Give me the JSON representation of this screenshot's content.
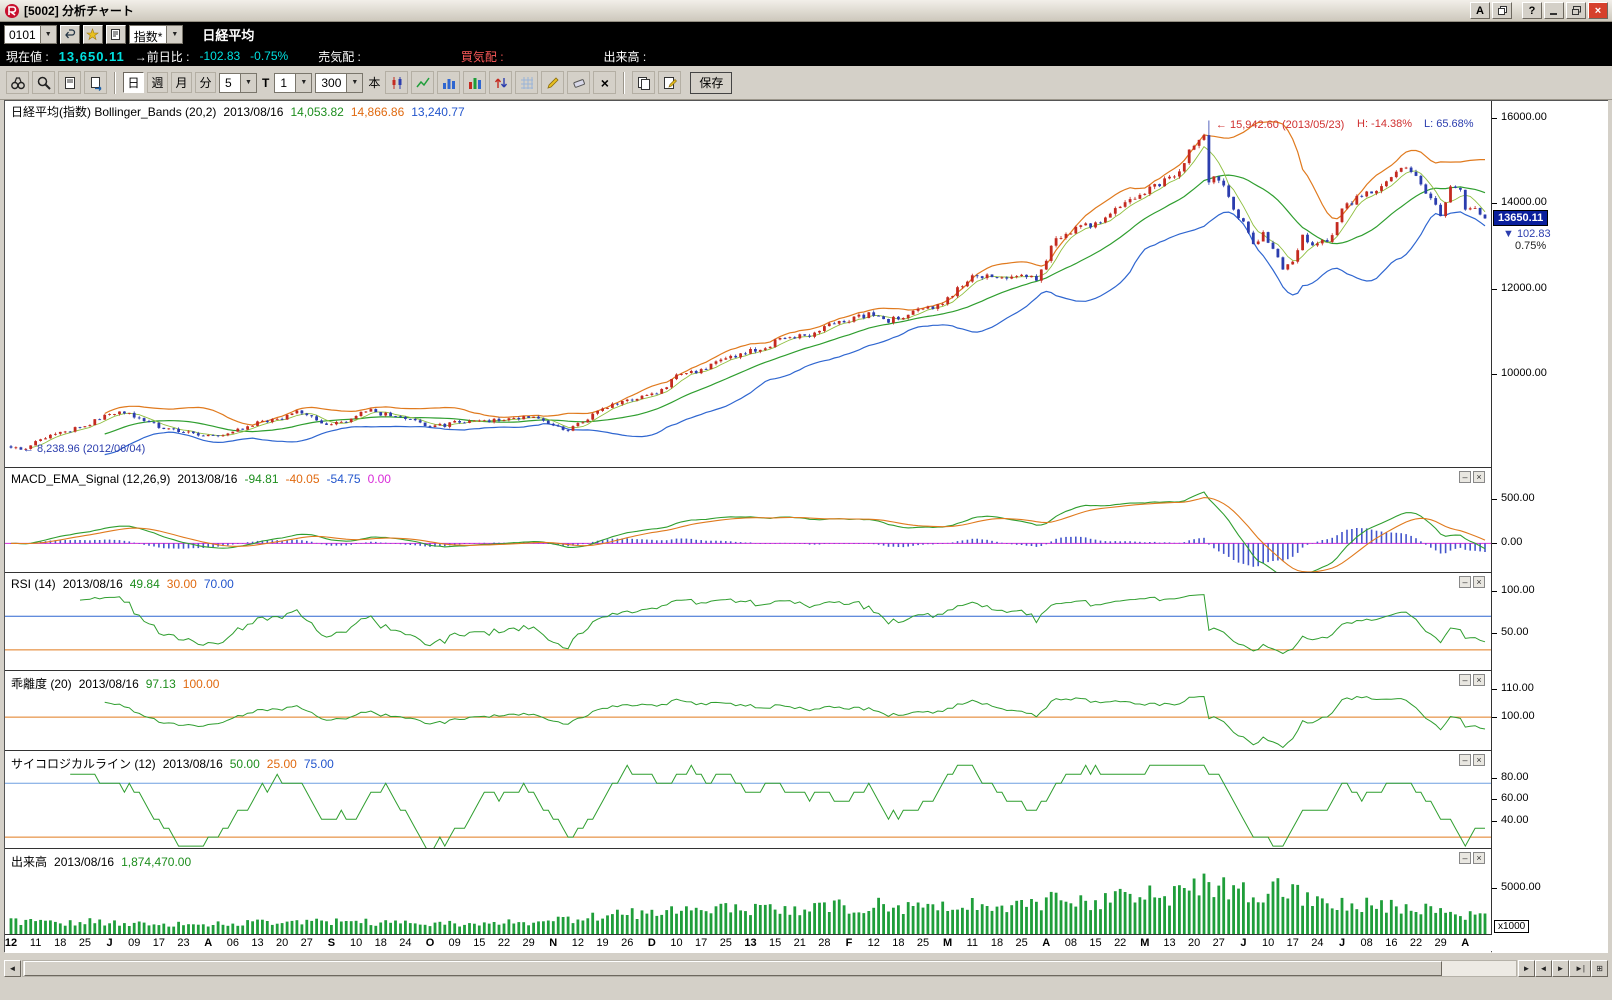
{
  "window": {
    "title": "[5002] 分析チャート",
    "buttons": {
      "annotate": "A",
      "help": "?"
    }
  },
  "icons": {
    "dropdown": "▼",
    "close": "×",
    "scroll_left": "◄",
    "scroll_right": "►",
    "nav_prev": "◄",
    "nav_next": "►",
    "nav_last": "►|",
    "layout": "⊞",
    "panel_minimize": "–",
    "panel_close": "×",
    "delete_drawing": "×"
  },
  "symbol_bar": {
    "code": "0101",
    "category": "指数*",
    "symbol_name": "日経平均"
  },
  "quote_bar": {
    "current_label": "現在値 :",
    "current_value": "13,650.11",
    "prev_diff_label": "→前日比 :",
    "prev_diff_value": "-102.83",
    "prev_diff_pct": "-0.75%",
    "ask_label": "売気配 :",
    "bid_label": "買気配 :",
    "volume_label": "出来高 :"
  },
  "toolbar": {
    "period_day": "日",
    "period_week": "週",
    "period_month": "月",
    "period_minute": "分",
    "interval_value": "5",
    "tick_label": "T",
    "tick_value": "1",
    "bars_value": "300",
    "bars_unit": "本",
    "save_label": "保存"
  },
  "panels": {
    "main": {
      "title": "日経平均(指数) Bollinger_Bands (20,2)",
      "date": "2013/08/16",
      "mid": "14,053.82",
      "upper": "14,866.86",
      "lower": "13,240.77"
    },
    "macd": {
      "title": "MACD_EMA_Signal (12,26,9)",
      "date": "2013/08/16",
      "macd": "-94.81",
      "signal": "-40.05",
      "hist": "-54.75",
      "zero": "0.00"
    },
    "rsi": {
      "title": "RSI (14)",
      "date": "2013/08/16",
      "value": "49.84",
      "low_ref": "30.00",
      "high_ref": "70.00"
    },
    "kairi": {
      "title": "乖離度 (20)",
      "date": "2013/08/16",
      "value": "97.13",
      "ref": "100.00"
    },
    "psych": {
      "title": "サイコロジカルライン (12)",
      "date": "2013/08/16",
      "value": "50.00",
      "low_ref": "25.00",
      "high_ref": "75.00"
    },
    "volume": {
      "title": "出来高",
      "date": "2013/08/16",
      "value": "1,874,470.00"
    }
  },
  "annotations": {
    "high": "← 15,942.60 (2013/05/23)",
    "low": "← 8,238.96 (2012/06/04)"
  },
  "stats": {
    "high_pct": "H: -14.38%",
    "low_pct": "L: 65.68%"
  },
  "price_tag": {
    "value": "13650.11",
    "change": "▼ 102.83",
    "pct": "0.75%"
  },
  "axis": {
    "volume_multiplier": "x1000"
  },
  "x_axis_labels": [
    "12",
    "11",
    "18",
    "25",
    "J",
    "09",
    "17",
    "23",
    "A",
    "06",
    "13",
    "20",
    "27",
    "S",
    "10",
    "18",
    "24",
    "O",
    "09",
    "15",
    "22",
    "29",
    "N",
    "12",
    "19",
    "26",
    "D",
    "10",
    "17",
    "25",
    "13",
    "15",
    "21",
    "28",
    "F",
    "12",
    "18",
    "25",
    "M",
    "11",
    "18",
    "25",
    "A",
    "08",
    "15",
    "22",
    "M",
    "13",
    "20",
    "27",
    "J",
    "10",
    "17",
    "24",
    "J",
    "08",
    "16",
    "22",
    "29",
    "A"
  ],
  "chart_data": {
    "bars": 300,
    "main": {
      "type": "candlestick",
      "title": "日経平均(指数) Bollinger_Bands (20,2)",
      "ylim": [
        7800,
        16400
      ],
      "y_ticks": [
        16000,
        14000,
        12000,
        10000
      ],
      "high_anchor": {
        "index": 243,
        "value": 15942.6,
        "date": "2013/05/23"
      },
      "low_anchor": {
        "index": 1,
        "value": 8238.96,
        "date": "2012/06/04"
      },
      "last_close": 13650.11,
      "bollinger": {
        "period": 20,
        "stddev": 2,
        "middle": 14053.82,
        "upper": 14866.86,
        "lower": 13240.77
      },
      "close_control_points": [
        [
          0,
          8295
        ],
        [
          2,
          8239
        ],
        [
          6,
          8450
        ],
        [
          10,
          8640
        ],
        [
          14,
          8730
        ],
        [
          19,
          9007
        ],
        [
          23,
          9104
        ],
        [
          27,
          8950
        ],
        [
          31,
          8730
        ],
        [
          35,
          8650
        ],
        [
          41,
          8555
        ],
        [
          46,
          8700
        ],
        [
          50,
          8880
        ],
        [
          55,
          8980
        ],
        [
          58,
          9150
        ],
        [
          63,
          8840
        ],
        [
          67,
          8870
        ],
        [
          70,
          9000
        ],
        [
          72,
          9160
        ],
        [
          76,
          9060
        ],
        [
          82,
          8870
        ],
        [
          86,
          8770
        ],
        [
          90,
          8850
        ],
        [
          95,
          8930
        ],
        [
          100,
          8900
        ],
        [
          104,
          8970
        ],
        [
          106,
          9050
        ],
        [
          109,
          8850
        ],
        [
          112,
          8665
        ],
        [
          116,
          8900
        ],
        [
          120,
          9150
        ],
        [
          125,
          9420
        ],
        [
          128,
          9460
        ],
        [
          132,
          9640
        ],
        [
          135,
          9940
        ],
        [
          140,
          10100
        ],
        [
          145,
          10395
        ],
        [
          148,
          10480
        ],
        [
          152,
          10600
        ],
        [
          156,
          10800
        ],
        [
          160,
          10900
        ],
        [
          163,
          10920
        ],
        [
          166,
          11140
        ],
        [
          170,
          11260
        ],
        [
          174,
          11400
        ],
        [
          178,
          11250
        ],
        [
          182,
          11400
        ],
        [
          185,
          11560
        ],
        [
          188,
          11600
        ],
        [
          192,
          11980
        ],
        [
          195,
          12280
        ],
        [
          199,
          12340
        ],
        [
          202,
          12250
        ],
        [
          205,
          12400
        ],
        [
          208,
          12200
        ],
        [
          212,
          13200
        ],
        [
          216,
          13400
        ],
        [
          220,
          13550
        ],
        [
          224,
          13880
        ],
        [
          228,
          14180
        ],
        [
          232,
          14400
        ],
        [
          236,
          14600
        ],
        [
          240,
          15360
        ],
        [
          242,
          15627
        ],
        [
          243,
          14483
        ],
        [
          245,
          14612
        ],
        [
          247,
          14142
        ],
        [
          248,
          13775
        ],
        [
          250,
          13515
        ],
        [
          252,
          13014
        ],
        [
          254,
          13290
        ],
        [
          256,
          12904
        ],
        [
          258,
          12445
        ],
        [
          260,
          12686
        ],
        [
          262,
          13230
        ],
        [
          264,
          13014
        ],
        [
          266,
          13106
        ],
        [
          268,
          13240
        ],
        [
          270,
          13852
        ],
        [
          273,
          14110
        ],
        [
          276,
          14310
        ],
        [
          279,
          14506
        ],
        [
          282,
          14808
        ],
        [
          285,
          14655
        ],
        [
          288,
          14130
        ],
        [
          290,
          13668
        ],
        [
          291,
          14060
        ],
        [
          292,
          14466
        ],
        [
          294,
          14258
        ],
        [
          295,
          13825
        ],
        [
          297,
          13867
        ],
        [
          298,
          13752
        ],
        [
          299,
          13650.11
        ]
      ],
      "colors": {
        "up": "#c42a20",
        "down": "#2b3dae",
        "middle": "#2f9e2f",
        "short_ma": "#8fbf3f",
        "upper": "#e07a1e",
        "lower": "#2f66d0"
      }
    },
    "macd": {
      "type": "line",
      "params": [
        12,
        26,
        9
      ],
      "last": {
        "macd": -94.81,
        "signal": -40.05,
        "hist": -54.75
      },
      "ylim": [
        -330,
        830
      ],
      "y_ticks": [
        500,
        0
      ],
      "colors": {
        "macd": "#2f9e2f",
        "signal": "#e07a1e",
        "hist": "#4455cc",
        "zero": "#d92bd9"
      }
    },
    "rsi": {
      "type": "line",
      "period": 14,
      "last": 49.84,
      "refs": {
        "high": 70,
        "low": 30
      },
      "ylim": [
        5,
        120
      ],
      "y_ticks": [
        100,
        50
      ],
      "colors": {
        "line": "#2f9e2f",
        "high_ref": "#2f66d0",
        "low_ref": "#e07a1e"
      }
    },
    "kairi": {
      "type": "line",
      "period": 20,
      "last": 97.13,
      "refs": {
        "base": 100
      },
      "ylim": [
        88,
        116
      ],
      "y_ticks": [
        110,
        100
      ],
      "colors": {
        "line": "#2f9e2f",
        "base_ref": "#e07a1e"
      }
    },
    "psych": {
      "type": "line",
      "period": 12,
      "last": 50.0,
      "refs": {
        "high": 75,
        "low": 25
      },
      "ylim": [
        14,
        104
      ],
      "y_ticks": [
        80,
        60,
        40
      ],
      "colors": {
        "line": "#2f9e2f",
        "high_ref": "#6f9fe0",
        "low_ref": "#e07a1e"
      }
    },
    "volume": {
      "type": "bar",
      "last": 1874470.0,
      "unit": "x1000",
      "ylim": [
        0,
        9000
      ],
      "y_ticks": [
        5000
      ],
      "volume_control_points": [
        [
          0,
          1500
        ],
        [
          8,
          1300
        ],
        [
          16,
          1450
        ],
        [
          24,
          1250
        ],
        [
          32,
          1200
        ],
        [
          40,
          1150
        ],
        [
          48,
          1350
        ],
        [
          56,
          1300
        ],
        [
          64,
          1400
        ],
        [
          72,
          1350
        ],
        [
          80,
          1250
        ],
        [
          88,
          1200
        ],
        [
          96,
          1300
        ],
        [
          104,
          1400
        ],
        [
          110,
          1500
        ],
        [
          115,
          1800
        ],
        [
          120,
          2050
        ],
        [
          125,
          2300
        ],
        [
          130,
          2400
        ],
        [
          135,
          2700
        ],
        [
          140,
          2500
        ],
        [
          145,
          2900
        ],
        [
          150,
          2650
        ],
        [
          155,
          2750
        ],
        [
          160,
          2850
        ],
        [
          165,
          3050
        ],
        [
          170,
          2950
        ],
        [
          175,
          3150
        ],
        [
          180,
          2850
        ],
        [
          185,
          3050
        ],
        [
          190,
          3250
        ],
        [
          195,
          3450
        ],
        [
          200,
          3150
        ],
        [
          205,
          3350
        ],
        [
          210,
          3550
        ],
        [
          215,
          3650
        ],
        [
          220,
          3450
        ],
        [
          225,
          3850
        ],
        [
          230,
          4050
        ],
        [
          235,
          4300
        ],
        [
          240,
          4900
        ],
        [
          243,
          5500
        ],
        [
          245,
          4650
        ],
        [
          248,
          5100
        ],
        [
          252,
          4450
        ],
        [
          256,
          4850
        ],
        [
          258,
          5600
        ],
        [
          260,
          4250
        ],
        [
          264,
          3850
        ],
        [
          268,
          3650
        ],
        [
          272,
          3450
        ],
        [
          276,
          3250
        ],
        [
          280,
          3050
        ],
        [
          284,
          2850
        ],
        [
          288,
          2650
        ],
        [
          292,
          2450
        ],
        [
          296,
          2150
        ],
        [
          299,
          1874
        ]
      ],
      "colors": {
        "bar": "#1f9e3a"
      }
    }
  }
}
